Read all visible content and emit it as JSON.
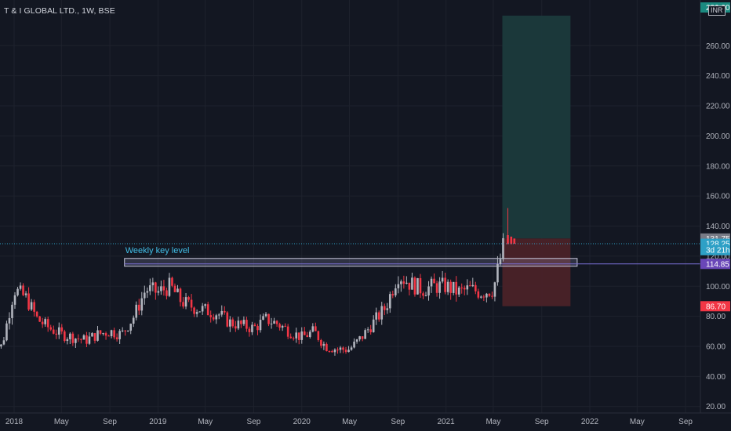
{
  "symbol": {
    "title": "T & I GLOBAL LTD., 1W, BSE"
  },
  "currency": "INR",
  "currency_badge_value": "280.00",
  "colors": {
    "up": "#b2b5be",
    "down": "#f23645",
    "background": "#131722",
    "profit_zone": "#1b3a3c",
    "loss_zone": "#4a2228",
    "key_level": "#7b70d6",
    "badge_gray": "#787b86",
    "badge_teal": "#2ea0c6",
    "badge_purple": "#6a47b8",
    "badge_red": "#f23645"
  },
  "chart_data": {
    "type": "candlestick",
    "title": "T & I GLOBAL LTD., 1W, BSE",
    "xlabel": "",
    "ylabel": "",
    "ylim": [
      16,
      286
    ],
    "y_ticks": [
      20,
      40,
      60,
      80,
      100,
      120,
      140,
      160,
      180,
      200,
      220,
      240,
      260
    ],
    "x_ticks": [
      {
        "label": "2018",
        "date": "2018-01"
      },
      {
        "label": "May",
        "date": "2018-05"
      },
      {
        "label": "Sep",
        "date": "2018-09"
      },
      {
        "label": "2019",
        "date": "2019-01"
      },
      {
        "label": "May",
        "date": "2019-05"
      },
      {
        "label": "Sep",
        "date": "2019-09"
      },
      {
        "label": "2020",
        "date": "2020-01"
      },
      {
        "label": "May",
        "date": "2020-05"
      },
      {
        "label": "Sep",
        "date": "2020-09"
      },
      {
        "label": "2021",
        "date": "2021-01"
      },
      {
        "label": "May",
        "date": "2021-05"
      },
      {
        "label": "Sep",
        "date": "2021-09"
      },
      {
        "label": "2022",
        "date": "2022-01"
      },
      {
        "label": "May",
        "date": "2022-05"
      },
      {
        "label": "Sep",
        "date": "2022-09"
      }
    ],
    "anchors": [
      {
        "date": "2017-11",
        "price": 62
      },
      {
        "date": "2017-12",
        "price": 60
      },
      {
        "date": "2018-01",
        "price": 98
      },
      {
        "date": "2018-02",
        "price": 92
      },
      {
        "date": "2018-03",
        "price": 78
      },
      {
        "date": "2018-04",
        "price": 72
      },
      {
        "date": "2018-05",
        "price": 68
      },
      {
        "date": "2018-06",
        "price": 66
      },
      {
        "date": "2018-07",
        "price": 64
      },
      {
        "date": "2018-08",
        "price": 68
      },
      {
        "date": "2018-09",
        "price": 70
      },
      {
        "date": "2018-10",
        "price": 68
      },
      {
        "date": "2018-11",
        "price": 80
      },
      {
        "date": "2018-12",
        "price": 98
      },
      {
        "date": "2019-01",
        "price": 96
      },
      {
        "date": "2019-02",
        "price": 100
      },
      {
        "date": "2019-03",
        "price": 90
      },
      {
        "date": "2019-04",
        "price": 86
      },
      {
        "date": "2019-05",
        "price": 84
      },
      {
        "date": "2019-06",
        "price": 82
      },
      {
        "date": "2019-07",
        "price": 76
      },
      {
        "date": "2019-08",
        "price": 74
      },
      {
        "date": "2019-09",
        "price": 72
      },
      {
        "date": "2019-10",
        "price": 78
      },
      {
        "date": "2019-11",
        "price": 75
      },
      {
        "date": "2019-12",
        "price": 70
      },
      {
        "date": "2020-01",
        "price": 66
      },
      {
        "date": "2020-02",
        "price": 70
      },
      {
        "date": "2020-03",
        "price": 60
      },
      {
        "date": "2020-04",
        "price": 58
      },
      {
        "date": "2020-05",
        "price": 58
      },
      {
        "date": "2020-06",
        "price": 66
      },
      {
        "date": "2020-07",
        "price": 76
      },
      {
        "date": "2020-08",
        "price": 86
      },
      {
        "date": "2020-09",
        "price": 108
      },
      {
        "date": "2020-10",
        "price": 102
      },
      {
        "date": "2020-11",
        "price": 98
      },
      {
        "date": "2020-12",
        "price": 100
      },
      {
        "date": "2021-01",
        "price": 100
      },
      {
        "date": "2021-02",
        "price": 96
      },
      {
        "date": "2021-03",
        "price": 98
      },
      {
        "date": "2021-04",
        "price": 96
      },
      {
        "date": "2021-05",
        "price": 98
      },
      {
        "date": "2021-05-28",
        "price": 128
      }
    ],
    "key_level": {
      "label": "Weekly key level",
      "price": 114.85,
      "from": "2018-11",
      "to": "2021-11-10"
    },
    "position": {
      "entry": 131.75,
      "target": 280.0,
      "stop": 86.7,
      "from": "2021-06",
      "to": "2021-11"
    },
    "price_labels": [
      {
        "value": "131.75",
        "price": 131.75,
        "kind": "gray"
      },
      {
        "value": "128.25",
        "price": 128.25,
        "kind": "teal"
      },
      {
        "value": "3d 21h",
        "price": 124.0,
        "kind": "teal"
      },
      {
        "value": "114.85",
        "price": 114.85,
        "kind": "purple"
      },
      {
        "value": "86.70",
        "price": 86.7,
        "kind": "red"
      }
    ]
  }
}
